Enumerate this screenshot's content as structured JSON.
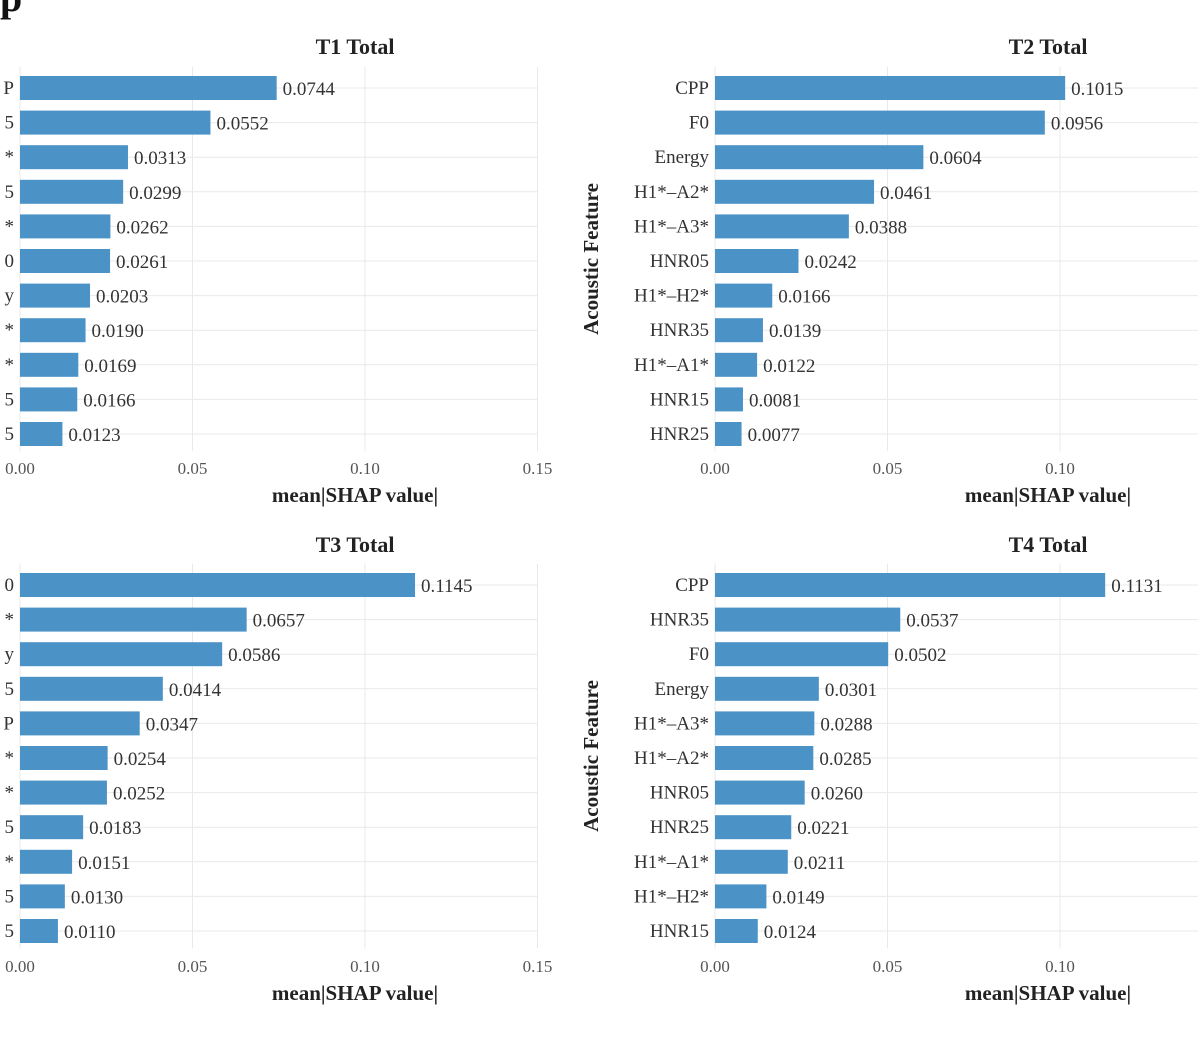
{
  "figure_title_fragment": "p",
  "chart_data": [
    {
      "type": "bar",
      "orientation": "horizontal",
      "title": "T1 Total",
      "xlabel": "mean|SHAP value|",
      "ylabel": "",
      "xlim": [
        0,
        0.15
      ],
      "xticks": [
        "0.00",
        "0.05",
        "0.10",
        "0.15"
      ],
      "grid": true,
      "categories": [
        "P",
        "5",
        "*",
        "5",
        "*",
        "0",
        "y",
        "*",
        "*",
        "5",
        "5"
      ],
      "values": [
        0.0744,
        0.0552,
        0.0313,
        0.0299,
        0.0262,
        0.0261,
        0.0203,
        0.019,
        0.0169,
        0.0166,
        0.0123
      ],
      "value_labels": [
        "0.0744",
        "0.0552",
        "0.0313",
        "0.0299",
        "0.0262",
        "0.0261",
        "0.0203",
        "0.0190",
        "0.0169",
        "0.0166",
        "0.0123"
      ],
      "bar_color": "#4b93c7"
    },
    {
      "type": "bar",
      "orientation": "horizontal",
      "title": "T2 Total",
      "xlabel": "mean|SHAP value|",
      "ylabel": "Acoustic Feature",
      "xlim": [
        0,
        0.14
      ],
      "xticks": [
        "0.00",
        "0.05",
        "0.10"
      ],
      "grid": true,
      "categories": [
        "CPP",
        "F0",
        "Energy",
        "H1*–A2*",
        "H1*–A3*",
        "HNR05",
        "H1*–H2*",
        "HNR35",
        "H1*–A1*",
        "HNR15",
        "HNR25"
      ],
      "values": [
        0.1015,
        0.0956,
        0.0604,
        0.0461,
        0.0388,
        0.0242,
        0.0166,
        0.0139,
        0.0122,
        0.0081,
        0.0077
      ],
      "value_labels": [
        "0.1015",
        "0.0956",
        "0.0604",
        "0.0461",
        "0.0388",
        "0.0242",
        "0.0166",
        "0.0139",
        "0.0122",
        "0.0081",
        "0.0077"
      ],
      "bar_color": "#4b93c7"
    },
    {
      "type": "bar",
      "orientation": "horizontal",
      "title": "T3 Total",
      "xlabel": "mean|SHAP value|",
      "ylabel": "",
      "xlim": [
        0,
        0.15
      ],
      "xticks": [
        "0.00",
        "0.05",
        "0.10",
        "0.15"
      ],
      "grid": true,
      "categories": [
        "0",
        "*",
        "y",
        "5",
        "P",
        "*",
        "*",
        "5",
        "*",
        "5",
        "5"
      ],
      "values": [
        0.1145,
        0.0657,
        0.0586,
        0.0414,
        0.0347,
        0.0254,
        0.0252,
        0.0183,
        0.0151,
        0.013,
        0.011
      ],
      "value_labels": [
        "0.1145",
        "0.0657",
        "0.0586",
        "0.0414",
        "0.0347",
        "0.0254",
        "0.0252",
        "0.0183",
        "0.0151",
        "0.0130",
        "0.0110"
      ],
      "bar_color": "#4b93c7"
    },
    {
      "type": "bar",
      "orientation": "horizontal",
      "title": "T4 Total",
      "xlabel": "mean|SHAP value|",
      "ylabel": "Acoustic Feature",
      "xlim": [
        0,
        0.14
      ],
      "xticks": [
        "0.00",
        "0.05",
        "0.10"
      ],
      "grid": true,
      "categories": [
        "CPP",
        "HNR35",
        "F0",
        "Energy",
        "H1*–A3*",
        "H1*–A2*",
        "HNR05",
        "HNR25",
        "H1*–A1*",
        "H1*–H2*",
        "HNR15"
      ],
      "values": [
        0.1131,
        0.0537,
        0.0502,
        0.0301,
        0.0288,
        0.0285,
        0.026,
        0.0221,
        0.0211,
        0.0149,
        0.0124
      ],
      "value_labels": [
        "0.1131",
        "0.0537",
        "0.0502",
        "0.0301",
        "0.0288",
        "0.0285",
        "0.0260",
        "0.0221",
        "0.0211",
        "0.0149",
        "0.0124"
      ],
      "bar_color": "#4b93c7"
    }
  ]
}
